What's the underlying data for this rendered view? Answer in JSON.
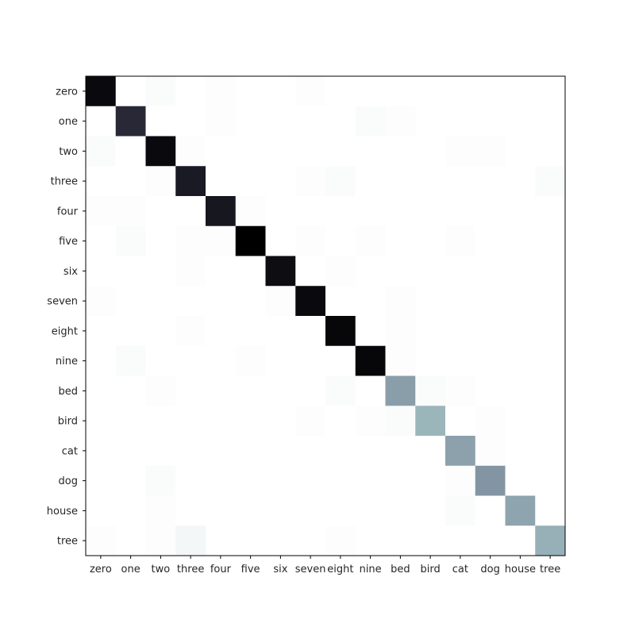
{
  "chart_data": {
    "type": "heatmap",
    "title": "",
    "xlabel": "",
    "ylabel": "",
    "x_categories": [
      "zero",
      "one",
      "two",
      "three",
      "four",
      "five",
      "six",
      "seven",
      "eight",
      "nine",
      "bed",
      "bird",
      "cat",
      "dog",
      "house",
      "tree"
    ],
    "y_categories": [
      "zero",
      "one",
      "two",
      "three",
      "four",
      "five",
      "six",
      "seven",
      "eight",
      "nine",
      "bed",
      "bird",
      "cat",
      "dog",
      "house",
      "tree"
    ],
    "values": [
      [
        0.97,
        0,
        0.02,
        0,
        0.01,
        0,
        0,
        0.01,
        0,
        0,
        0,
        0,
        0,
        0,
        0,
        0
      ],
      [
        0,
        0.88,
        0,
        0,
        0.01,
        0,
        0,
        0,
        0,
        0.02,
        0.01,
        0,
        0,
        0,
        0,
        0
      ],
      [
        0.02,
        0,
        0.97,
        0.01,
        0,
        0,
        0,
        0,
        0,
        0,
        0,
        0,
        0.01,
        0.01,
        0,
        0
      ],
      [
        0,
        0,
        0.01,
        0.92,
        0,
        0,
        0,
        0.01,
        0.02,
        0,
        0,
        0,
        0,
        0,
        0,
        0.02
      ],
      [
        0.01,
        0.01,
        0,
        0,
        0.93,
        0.01,
        0,
        0,
        0,
        0,
        0,
        0,
        0,
        0,
        0,
        0
      ],
      [
        0,
        0.02,
        0,
        0.01,
        0.01,
        1.0,
        0,
        0.01,
        0,
        0.01,
        0,
        0,
        0.01,
        0,
        0,
        0
      ],
      [
        0,
        0,
        0,
        0.01,
        0,
        0,
        0.96,
        0,
        0.01,
        0,
        0,
        0,
        0,
        0,
        0,
        0
      ],
      [
        0.01,
        0,
        0,
        0,
        0,
        0,
        0.01,
        0.97,
        0,
        0,
        0.01,
        0,
        0,
        0,
        0,
        0
      ],
      [
        0,
        0,
        0,
        0.01,
        0,
        0,
        0,
        0,
        0.98,
        0,
        0.01,
        0,
        0,
        0,
        0,
        0
      ],
      [
        0,
        0.02,
        0,
        0,
        0,
        0.01,
        0,
        0,
        0,
        0.98,
        0.01,
        0,
        0,
        0,
        0,
        0
      ],
      [
        0,
        0,
        0.01,
        0,
        0,
        0,
        0,
        0,
        0.02,
        0,
        0.5,
        0.02,
        0.01,
        0,
        0,
        0
      ],
      [
        0,
        0,
        0,
        0,
        0,
        0,
        0,
        0.01,
        0,
        0.01,
        0.02,
        0.42,
        0,
        0.01,
        0,
        0
      ],
      [
        0,
        0,
        0,
        0,
        0,
        0,
        0,
        0,
        0,
        0,
        0,
        0,
        0.49,
        0.01,
        0,
        0
      ],
      [
        0,
        0,
        0.02,
        0,
        0,
        0,
        0,
        0,
        0,
        0,
        0,
        0,
        0.01,
        0.53,
        0,
        0
      ],
      [
        0,
        0,
        0.01,
        0,
        0,
        0,
        0,
        0,
        0,
        0,
        0,
        0,
        0.02,
        0,
        0.48,
        0
      ],
      [
        0.01,
        0,
        0.01,
        0.05,
        0,
        0,
        0,
        0,
        0.01,
        0,
        0,
        0,
        0,
        0,
        0,
        0.44
      ]
    ],
    "colormap": "bone_r",
    "grid": false,
    "legend": "none"
  }
}
